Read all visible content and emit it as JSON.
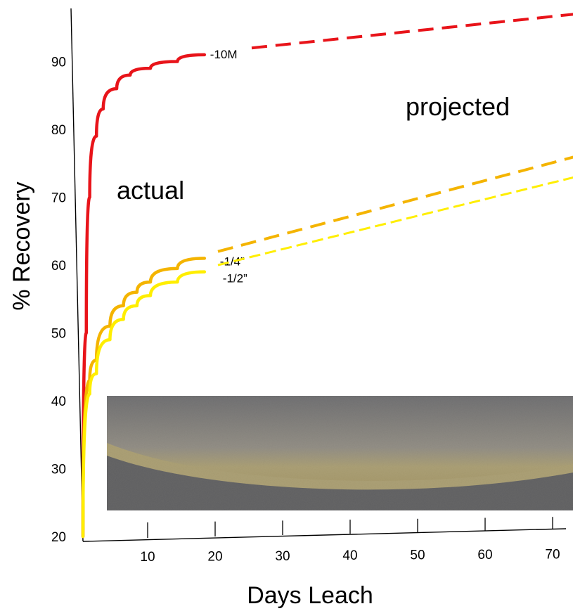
{
  "chart_data": {
    "type": "line",
    "title": "",
    "xlabel": "Days Leach",
    "ylabel": "% Recovery",
    "x_ticks": [
      10,
      20,
      30,
      40,
      50,
      60,
      70
    ],
    "y_ticks": [
      20,
      30,
      40,
      50,
      60,
      70,
      80,
      90
    ],
    "xlim": [
      0,
      73
    ],
    "ylim": [
      20,
      97
    ],
    "annotations": [
      "actual",
      "projected"
    ],
    "inset_image": "leached material photo",
    "series": [
      {
        "name": "-10M",
        "color": "#e8141a",
        "actual": {
          "x": [
            0,
            0.5,
            1,
            2,
            3,
            5,
            7,
            10,
            14,
            18
          ],
          "y": [
            20,
            50,
            70,
            79,
            83,
            86,
            88,
            89,
            90,
            91
          ]
        },
        "projected": {
          "x": [
            25,
            73
          ],
          "y": [
            92,
            97
          ]
        }
      },
      {
        "name": "-1/4”",
        "color": "#f4b400",
        "actual": {
          "x": [
            0,
            1,
            2,
            4,
            6,
            8,
            10,
            14,
            18
          ],
          "y": [
            21,
            43,
            46,
            51,
            54,
            56,
            57.5,
            59.5,
            61
          ]
        },
        "projected": {
          "x": [
            20,
            73
          ],
          "y": [
            62,
            76
          ]
        }
      },
      {
        "name": "-1/2”",
        "color": "#ffee00",
        "actual": {
          "x": [
            0,
            1,
            2,
            4,
            6,
            8,
            10,
            14,
            18
          ],
          "y": [
            20,
            41,
            44,
            49,
            52,
            54,
            55.5,
            57.5,
            59
          ]
        },
        "projected": {
          "x": [
            20,
            73
          ],
          "y": [
            60,
            73
          ]
        }
      }
    ]
  }
}
